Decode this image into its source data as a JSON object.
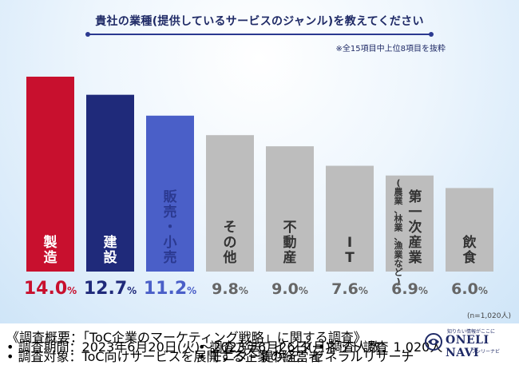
{
  "title": "貴社の業種(提供しているサービスのジャンル)を教えてください",
  "note": "※全15項目中上位8項目を抜粋",
  "sample_size": "(n=1,020人)",
  "chart_data": {
    "type": "bar",
    "categories": [
      "製造",
      "建設",
      "販売・小売",
      "その他",
      "不動産",
      "IT",
      "第一次産業",
      "飲食"
    ],
    "category_sublabels": [
      "",
      "",
      "",
      "",
      "",
      "",
      "(農業、林業、漁業など)",
      ""
    ],
    "values": [
      14.0,
      12.7,
      11.2,
      9.8,
      9.0,
      7.6,
      6.9,
      6.0
    ],
    "value_labels": [
      "14.0%",
      "12.7%",
      "11.2%",
      "9.8%",
      "9.0%",
      "7.6%",
      "6.9%",
      "6.0%"
    ],
    "bar_colors": [
      "#c8102e",
      "#1f2a7a",
      "#4a5fc8",
      "#bdbdbd",
      "#bdbdbd",
      "#bdbdbd",
      "#bdbdbd",
      "#bdbdbd"
    ],
    "label_colors": [
      "#ffffff",
      "#ffffff",
      "#2b3990",
      "#333333",
      "#333333",
      "#333333",
      "#333333",
      "#333333"
    ],
    "value_colors": [
      "#c8102e",
      "#1f2a7a",
      "#4a5fc8",
      "#666666",
      "#666666",
      "#666666",
      "#666666",
      "#666666"
    ],
    "ylim": [
      0,
      14.0
    ],
    "grid": false
  },
  "footer": {
    "survey_summary": "《調査概要：「ToC企業のマーケティング戦略」に関する調査》",
    "survey_period": "• 調査期間：2023年6月20日(火)～2023年6月26日(月)",
    "survey_target": "• 調査対象：ToC向けサービスを展開する企業の経営者",
    "survey_method": "• 調査方法：インターネット調査",
    "survey_provider": "• モニター提供元：ゼネラルリサーチ",
    "survey_count": "• 調査人数：1,020人"
  },
  "logo": {
    "tagline": "知りたい情報がここに",
    "name": "ONELI NAVI",
    "subname": "ワンリーナビ",
    "color": "#1f2a66"
  }
}
